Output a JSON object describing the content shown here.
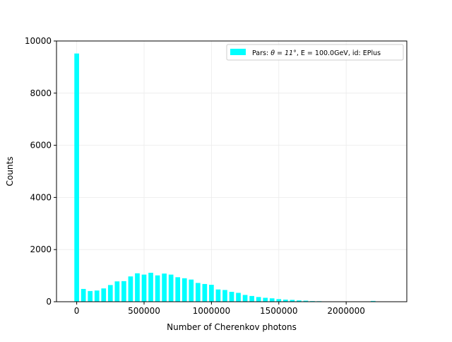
{
  "chart_data": {
    "type": "bar",
    "title": "",
    "xlabel": "Number of Cherenkov photons",
    "ylabel": "Counts",
    "xlim": [
      -150000,
      2450000
    ],
    "ylim": [
      0,
      10000
    ],
    "xticks": [
      0,
      500000,
      1000000,
      1500000,
      2000000
    ],
    "xtick_labels": [
      "0",
      "500000",
      "1000000",
      "1500000",
      "2000000"
    ],
    "yticks": [
      0,
      2000,
      4000,
      6000,
      8000,
      10000
    ],
    "ytick_labels": [
      "0",
      "2000",
      "4000",
      "6000",
      "8000",
      "10000"
    ],
    "grid": true,
    "legend": {
      "placement": "top-right",
      "label_prefix": "Pars: ",
      "label_theta": "θ = 11°",
      "label_energy": "E = 100.0GeV",
      "label_suffix": ", id: EPlus"
    },
    "bar_color": "#00ffff",
    "bin_width": 50000,
    "bar_width_fraction": 0.7,
    "series": [
      {
        "x": [
          0,
          50000,
          100000,
          150000,
          200000,
          250000,
          300000,
          350000,
          400000,
          450000,
          500000,
          550000,
          600000,
          650000,
          700000,
          750000,
          800000,
          850000,
          900000,
          950000,
          1000000,
          1050000,
          1100000,
          1150000,
          1200000,
          1250000,
          1300000,
          1350000,
          1400000,
          1450000,
          1500000,
          1550000,
          1600000,
          1650000,
          1700000,
          1750000,
          1800000,
          1850000,
          1900000,
          1950000,
          2000000,
          2050000,
          2100000,
          2150000,
          2200000,
          2250000,
          2300000
        ],
        "values": [
          9520,
          490,
          410,
          430,
          510,
          640,
          780,
          790,
          970,
          1090,
          1040,
          1110,
          1010,
          1080,
          1040,
          940,
          900,
          850,
          720,
          680,
          650,
          470,
          450,
          380,
          340,
          260,
          220,
          180,
          150,
          130,
          100,
          80,
          70,
          50,
          40,
          25,
          20,
          0,
          0,
          10,
          0,
          0,
          0,
          0,
          30,
          0,
          0
        ]
      }
    ]
  }
}
